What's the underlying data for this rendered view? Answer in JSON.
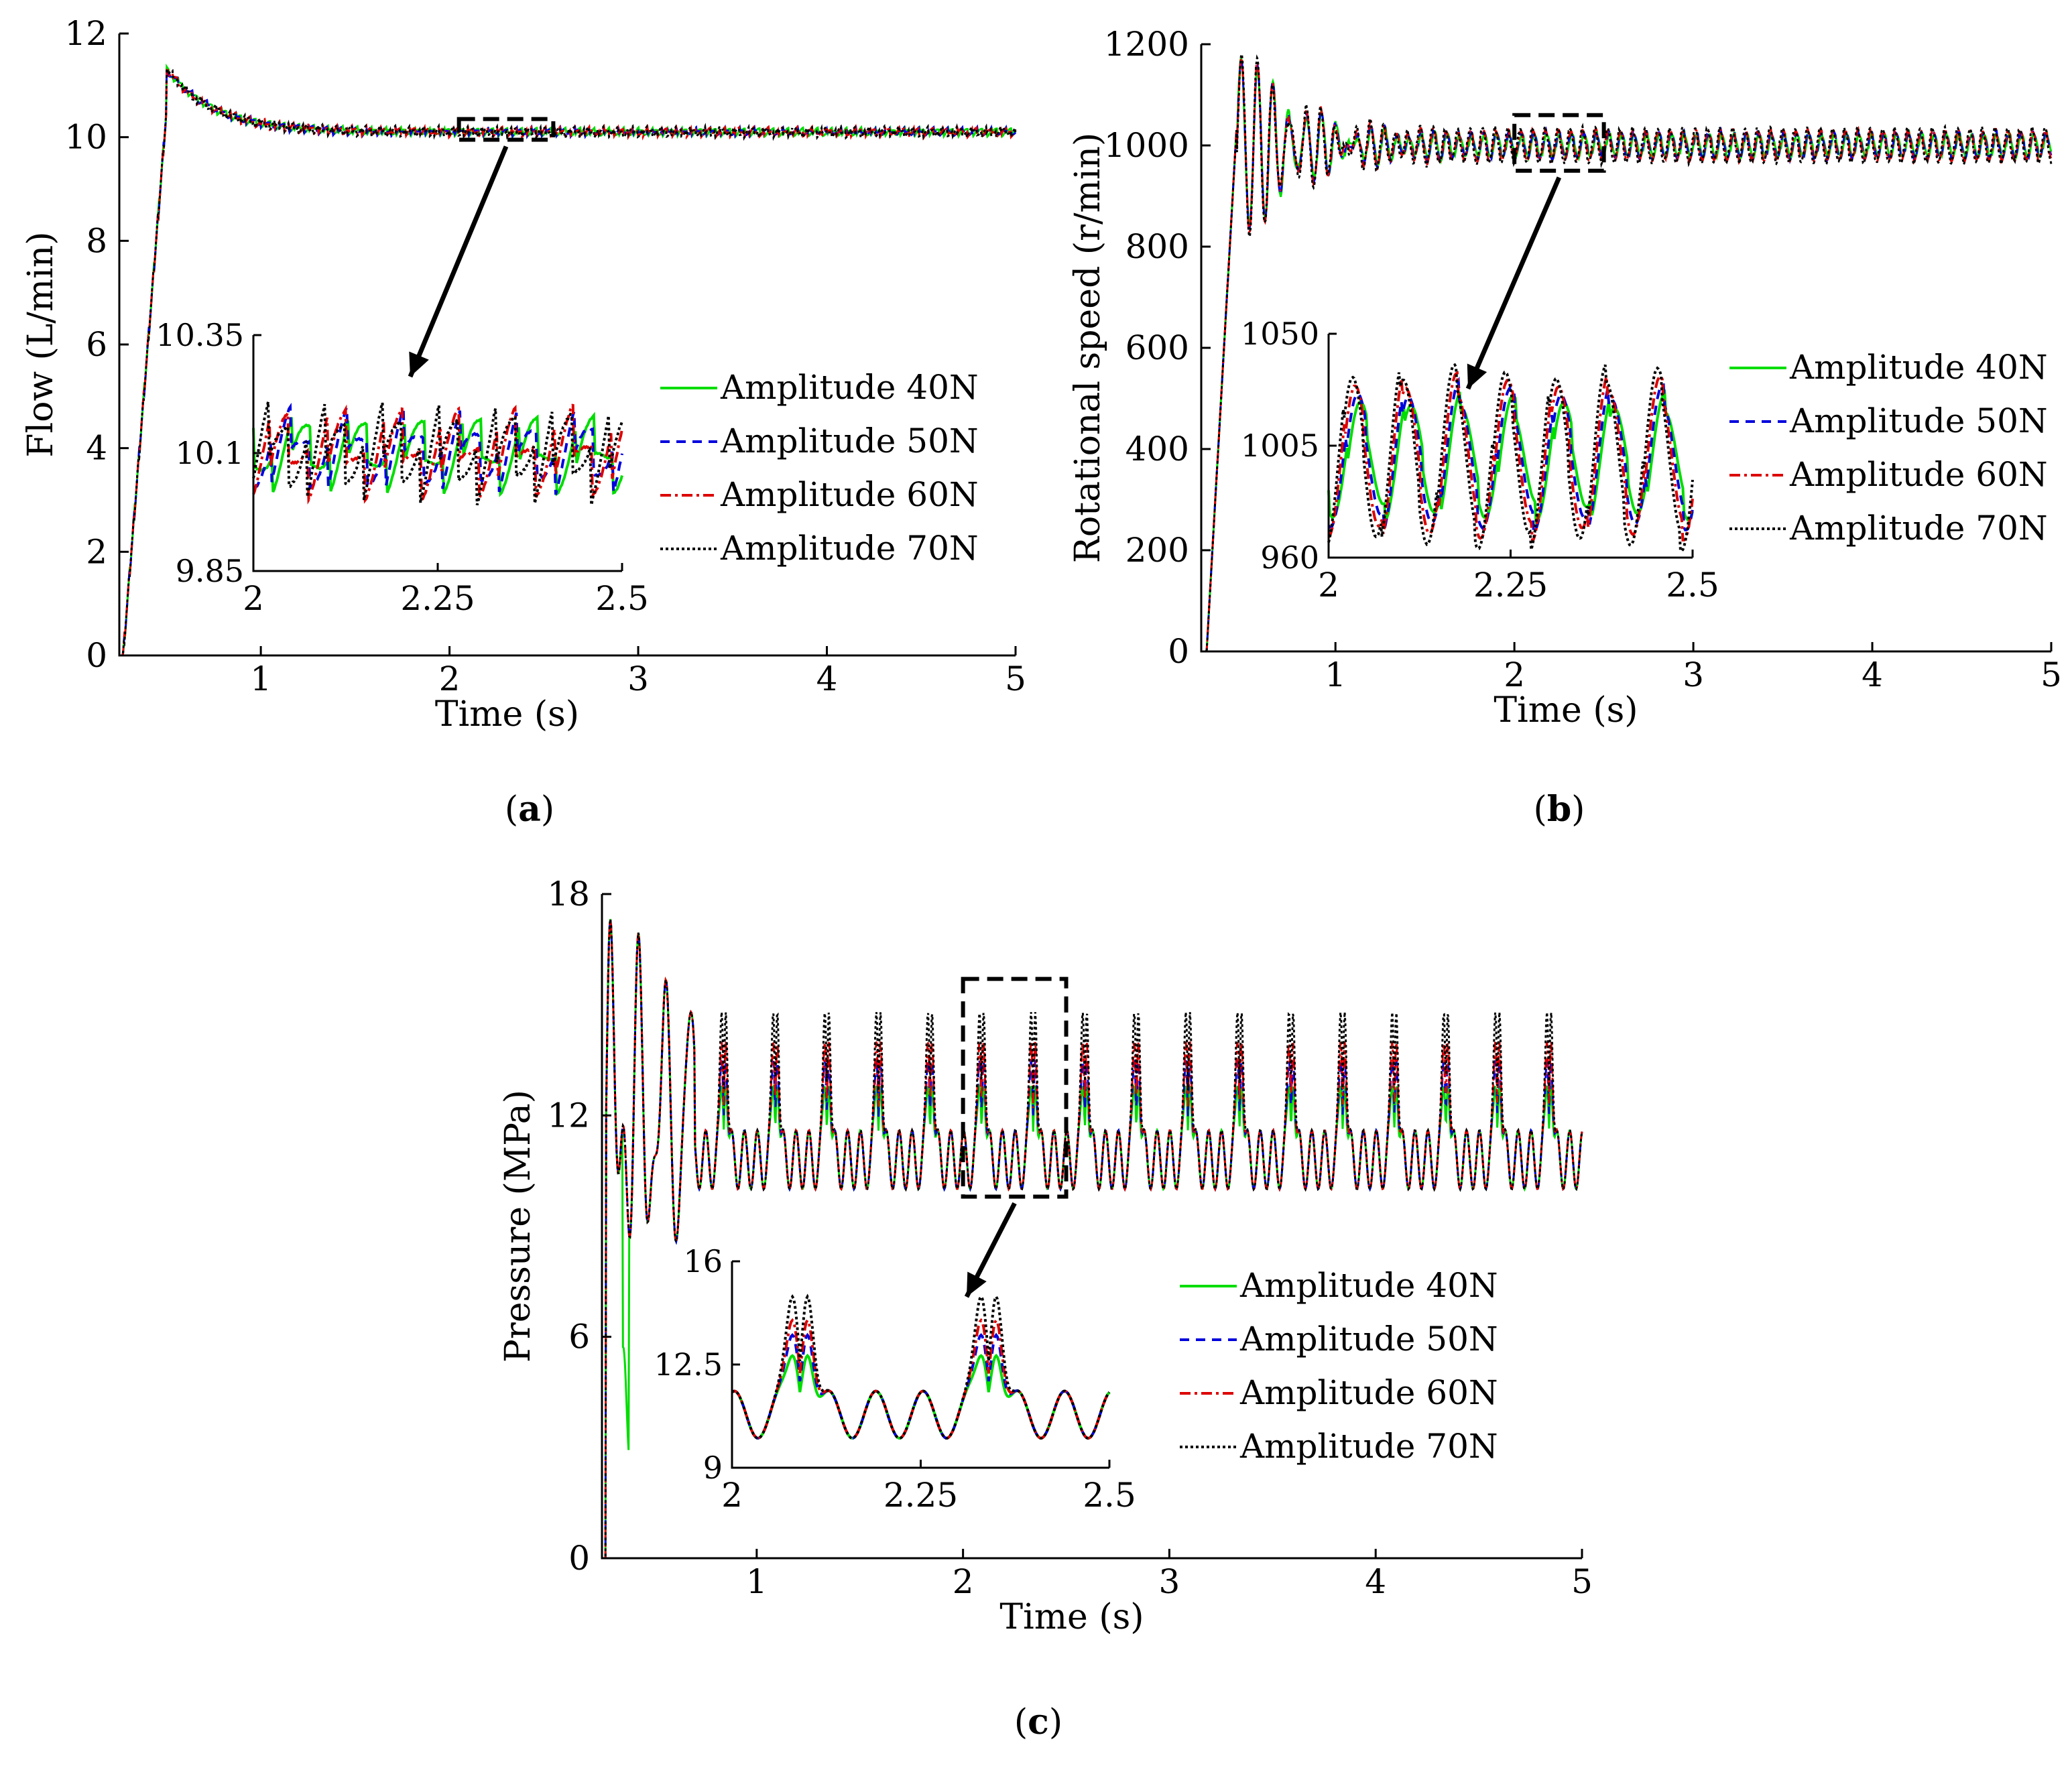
{
  "chart_data": [
    {
      "type": "line",
      "id": "a",
      "panel_label": "a",
      "xlabel": "Time (s)",
      "ylabel": "Flow (L/min)",
      "xlim": [
        0.25,
        5
      ],
      "ylim": [
        0,
        12
      ],
      "xticks": [
        "1",
        "2",
        "3",
        "4",
        "5"
      ],
      "yticks": [
        "0",
        "2",
        "4",
        "6",
        "8",
        "10",
        "12"
      ],
      "series": [
        {
          "name": "Amplitude 40N",
          "color": "#00dd00",
          "style": "solid"
        },
        {
          "name": "Amplitude 50N",
          "color": "#0000dd",
          "style": "dashed"
        },
        {
          "name": "Amplitude 60N",
          "color": "#dd0000",
          "style": "dashdot"
        },
        {
          "name": "Amplitude 70N",
          "color": "#000000",
          "style": "dotted"
        }
      ],
      "behavior": {
        "rise_end": 0.5,
        "peak_time": 0.55,
        "peak": 11.1,
        "steady": 10.1,
        "ripple": 0.05
      },
      "inset": {
        "xlim": [
          2,
          2.5
        ],
        "ylim": [
          9.85,
          10.35
        ],
        "xticks": [
          "2",
          "2.25",
          "2.5"
        ],
        "yticks": [
          "9.85",
          "10.1",
          "10.35"
        ],
        "zoom_window": {
          "x": [
            2.05,
            2.55
          ],
          "y": [
            9.95,
            10.35
          ]
        }
      }
    },
    {
      "type": "line",
      "id": "b",
      "panel_label": "b",
      "xlabel": "Time (s)",
      "ylabel": "Rotational speed (r/min)",
      "xlim": [
        0.25,
        5
      ],
      "ylim": [
        0,
        1200
      ],
      "xticks": [
        "1",
        "2",
        "3",
        "4",
        "5"
      ],
      "yticks": [
        "0",
        "200",
        "400",
        "600",
        "800",
        "1000",
        "1200"
      ],
      "series": [
        {
          "name": "Amplitude 40N",
          "color": "#00dd00",
          "style": "solid"
        },
        {
          "name": "Amplitude 50N",
          "color": "#0000dd",
          "style": "dashed"
        },
        {
          "name": "Amplitude 60N",
          "color": "#dd0000",
          "style": "dashdot"
        },
        {
          "name": "Amplitude 70N",
          "color": "#000000",
          "style": "dotted"
        }
      ],
      "behavior": {
        "rise_end": 0.45,
        "peak_time": 0.55,
        "peak": 1150,
        "steady": 1000,
        "ripple": 25
      },
      "inset": {
        "xlim": [
          2,
          2.5
        ],
        "ylim": [
          960,
          1050
        ],
        "xticks": [
          "2",
          "2.25",
          "2.5"
        ],
        "yticks": [
          "960",
          "1005",
          "1050"
        ],
        "zoom_window": {
          "x": [
            2.0,
            2.5
          ],
          "y": [
            950,
            1060
          ]
        }
      }
    },
    {
      "type": "line",
      "id": "c",
      "panel_label": "c",
      "xlabel": "Time (s)",
      "ylabel": "Pressure (MPa)",
      "xlim": [
        0.25,
        5
      ],
      "ylim": [
        0,
        18
      ],
      "xticks": [
        "1",
        "2",
        "3",
        "4",
        "5"
      ],
      "yticks": [
        "0",
        "6",
        "12",
        "18"
      ],
      "series": [
        {
          "name": "Amplitude 40N",
          "color": "#00dd00",
          "style": "solid",
          "peak": 12.8
        },
        {
          "name": "Amplitude 50N",
          "color": "#0000dd",
          "style": "dashed",
          "peak": 13.5
        },
        {
          "name": "Amplitude 60N",
          "color": "#dd0000",
          "style": "dashdot",
          "peak": 14.0
        },
        {
          "name": "Amplitude 70N",
          "color": "#000000",
          "style": "dotted",
          "peak": 14.8
        }
      ],
      "behavior": {
        "period": 0.25,
        "base": 10.8,
        "max_initial": 18
      },
      "inset": {
        "xlim": [
          2,
          2.5
        ],
        "ylim": [
          9,
          16
        ],
        "xticks": [
          "2",
          "2.25",
          "2.5"
        ],
        "yticks": [
          "9",
          "12.5",
          "16"
        ],
        "zoom_window": {
          "x": [
            2.0,
            2.5
          ],
          "y": [
            9.8,
            15.7
          ]
        }
      }
    }
  ]
}
